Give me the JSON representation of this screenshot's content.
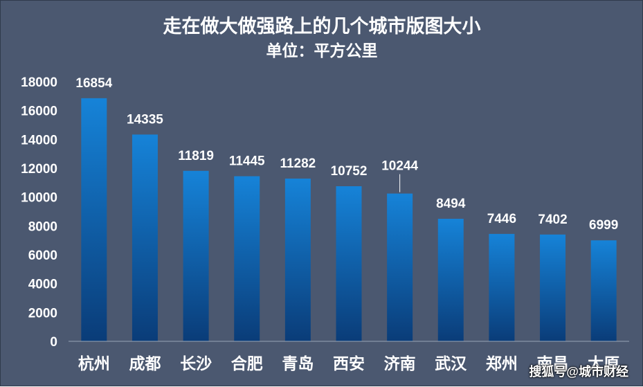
{
  "chart_data": {
    "type": "bar",
    "title": "走在做大做强路上的几个城市版图大小",
    "subtitle": "单位：平方公里",
    "categories": [
      "杭州",
      "成都",
      "长沙",
      "合肥",
      "青岛",
      "西安",
      "济南",
      "武汉",
      "郑州",
      "南昌",
      "太原"
    ],
    "values": [
      16854,
      14335,
      11819,
      11445,
      11282,
      10752,
      10244,
      8494,
      7446,
      7402,
      6999
    ],
    "ylim": [
      0,
      18000
    ],
    "yticks": [
      0,
      2000,
      4000,
      6000,
      8000,
      10000,
      12000,
      14000,
      16000,
      18000
    ],
    "grid": false,
    "data_labels": true
  },
  "colors": {
    "background": "#4b5870",
    "bar_top": "#1683d8",
    "bar_bottom": "#0a3c78",
    "text": "#ffffff"
  },
  "watermark": "搜狐号@城市财经"
}
